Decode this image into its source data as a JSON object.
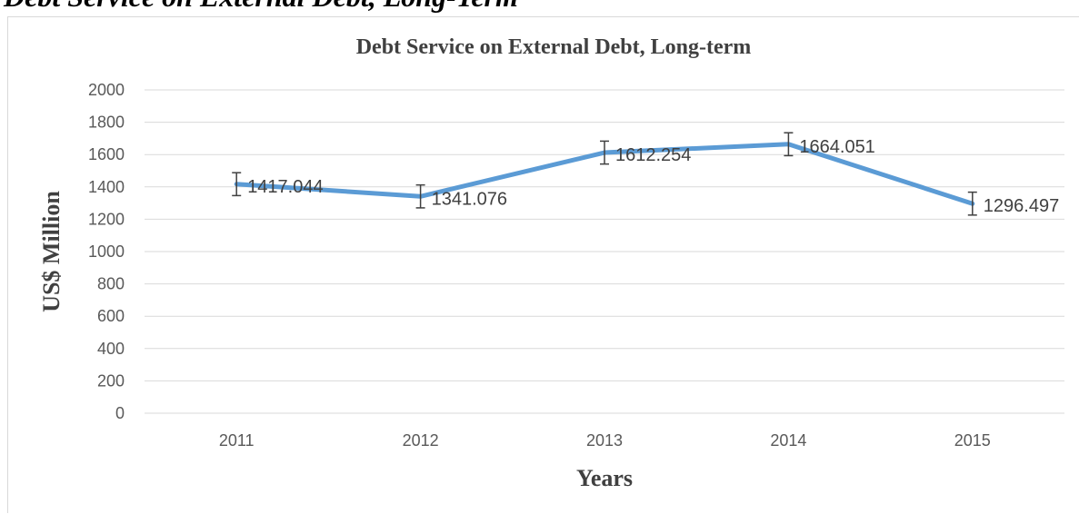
{
  "page": {
    "heading": "Debt Service on External Debt, Long-Term"
  },
  "chart_data": {
    "type": "line",
    "title": "Debt Service on External Debt, Long-term",
    "xlabel": "Years",
    "ylabel": "US$ Million",
    "categories": [
      "2011",
      "2012",
      "2013",
      "2014",
      "2015"
    ],
    "series": [
      {
        "values": [
          1417.044,
          1341.076,
          1612.254,
          1664.051,
          1296.497
        ],
        "labels": [
          "1417.044",
          "1341.076",
          "1612.254",
          "1664.051",
          "1296.497"
        ],
        "error_bar": 70.85,
        "color": "#5b9bd5"
      }
    ],
    "ylim": [
      0,
      2000
    ],
    "yticks": [
      0,
      200,
      400,
      600,
      800,
      1000,
      1200,
      1400,
      1600,
      1800,
      2000
    ],
    "grid": true,
    "legend": "none"
  }
}
